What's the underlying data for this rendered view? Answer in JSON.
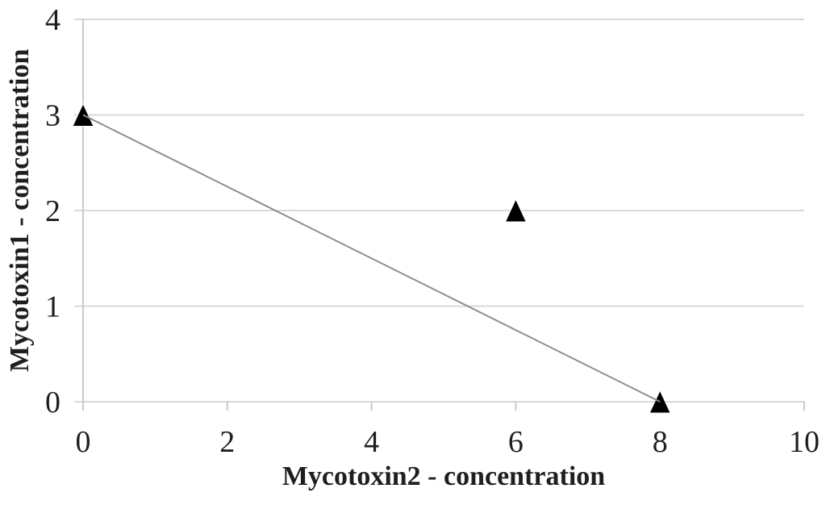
{
  "chart_data": {
    "type": "scatter",
    "title": "",
    "xlabel": "Mycotoxin2 - concentration",
    "ylabel": "Mycotoxin1 - concentration",
    "xlim": [
      0,
      10
    ],
    "ylim": [
      0,
      4
    ],
    "xticks": [
      0,
      2,
      4,
      6,
      8,
      10
    ],
    "yticks": [
      0,
      1,
      2,
      3,
      4
    ],
    "grid": "horizontal",
    "legend": "none",
    "series": [
      {
        "name": "data-points",
        "type": "scatter",
        "marker": "triangle",
        "color": "#000000",
        "points": [
          {
            "x": 0,
            "y": 3
          },
          {
            "x": 6,
            "y": 2
          },
          {
            "x": 8,
            "y": 0
          }
        ]
      },
      {
        "name": "connecting-line",
        "type": "line",
        "color": "#8c8c8c",
        "points": [
          {
            "x": 0,
            "y": 3
          },
          {
            "x": 8,
            "y": 0
          }
        ]
      }
    ],
    "colors": {
      "gridline": "#d9d9d9",
      "axis": "#c9c9c9",
      "marker": "#000000",
      "line": "#8c8c8c",
      "text": "#1f1f1f",
      "background": "#ffffff"
    }
  }
}
